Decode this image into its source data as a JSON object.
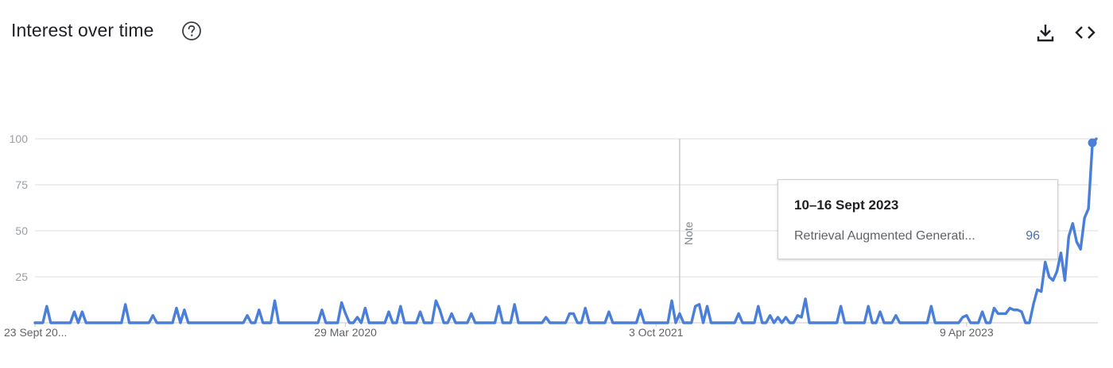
{
  "header": {
    "title": "Interest over time",
    "help_icon": "help-circle-icon",
    "download_icon": "download-icon",
    "embed_icon": "code-embed-icon"
  },
  "tooltip": {
    "date": "10–16 Sept 2023",
    "series_name": "Retrieval Augmented Generati...",
    "value": "96"
  },
  "note_label": "Note",
  "colors": {
    "line": "#4a7fd9",
    "grid": "#dcdcdc",
    "axis_text": "#9aa0a6",
    "note_line": "#bdbdbd"
  },
  "chart_data": {
    "type": "line",
    "title": "Interest over time",
    "xlabel": "",
    "ylabel": "",
    "ylim": [
      0,
      100
    ],
    "yticks": [
      25,
      50,
      75,
      100
    ],
    "xtick_labels": [
      "23 Sept 20...",
      "29 Mar 2020",
      "3 Oct 2021",
      "9 Apr 2023"
    ],
    "xtick_index": [
      0,
      79,
      158,
      237
    ],
    "note_index": 164,
    "grid": true,
    "legend": "none",
    "series": [
      {
        "name": "Retrieval Augmented Generati...",
        "values": [
          0,
          0,
          0,
          9,
          0,
          0,
          0,
          0,
          0,
          0,
          6,
          0,
          6,
          0,
          0,
          0,
          0,
          0,
          0,
          0,
          0,
          0,
          0,
          10,
          0,
          0,
          0,
          0,
          0,
          0,
          4,
          0,
          0,
          0,
          0,
          0,
          8,
          0,
          7,
          0,
          0,
          0,
          0,
          0,
          0,
          0,
          0,
          0,
          0,
          0,
          0,
          0,
          0,
          0,
          4,
          0,
          0,
          7,
          0,
          0,
          0,
          12,
          0,
          0,
          0,
          0,
          0,
          0,
          0,
          0,
          0,
          0,
          0,
          7,
          0,
          0,
          0,
          0,
          11,
          5,
          0,
          0,
          3,
          0,
          8,
          0,
          0,
          0,
          0,
          0,
          6,
          0,
          0,
          9,
          0,
          0,
          0,
          0,
          6,
          0,
          0,
          0,
          12,
          7,
          0,
          0,
          5,
          0,
          0,
          0,
          0,
          5,
          0,
          0,
          0,
          0,
          0,
          0,
          9,
          0,
          0,
          0,
          10,
          0,
          0,
          0,
          0,
          0,
          0,
          0,
          3,
          0,
          0,
          0,
          0,
          0,
          5,
          5,
          0,
          0,
          8,
          0,
          0,
          0,
          0,
          0,
          6,
          0,
          0,
          0,
          0,
          0,
          0,
          0,
          7,
          0,
          0,
          0,
          0,
          0,
          0,
          0,
          12,
          0,
          5,
          0,
          0,
          0,
          9,
          10,
          0,
          9,
          0,
          0,
          0,
          0,
          0,
          0,
          0,
          5,
          0,
          0,
          0,
          0,
          9,
          0,
          0,
          4,
          0,
          3,
          0,
          3,
          0,
          0,
          4,
          3,
          13,
          0,
          0,
          0,
          0,
          0,
          0,
          0,
          0,
          9,
          0,
          0,
          0,
          0,
          0,
          0,
          9,
          0,
          0,
          6,
          0,
          0,
          0,
          4,
          0,
          0,
          0,
          0,
          0,
          0,
          0,
          0,
          9,
          0,
          0,
          0,
          0,
          0,
          0,
          0,
          3,
          4,
          0,
          0,
          0,
          6,
          0,
          0,
          8,
          5,
          5,
          5,
          8,
          7,
          7,
          6,
          0,
          0,
          10,
          18,
          17,
          33,
          25,
          23,
          28,
          38,
          23,
          47,
          54,
          44,
          40,
          57,
          62,
          97,
          100
        ]
      }
    ]
  }
}
